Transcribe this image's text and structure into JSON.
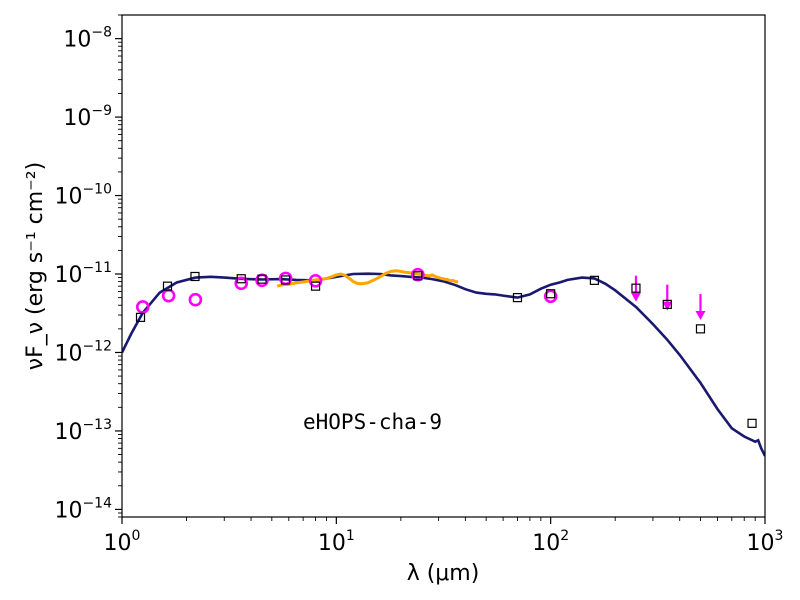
{
  "chart_data": {
    "type": "scatter",
    "title": "",
    "xlabel": "λ (μm)",
    "ylabel": "νF_ν (erg s⁻¹ cm⁻²)",
    "xscale": "log",
    "yscale": "log",
    "xlim": [
      1,
      1000
    ],
    "ylim": [
      8e-15,
      2e-08
    ],
    "grid": false,
    "x_ticks": [
      {
        "value": 1,
        "base": "10",
        "exp": "0"
      },
      {
        "value": 10,
        "base": "10",
        "exp": "1"
      },
      {
        "value": 100,
        "base": "10",
        "exp": "2"
      },
      {
        "value": 1000,
        "base": "10",
        "exp": "3"
      }
    ],
    "y_ticks": [
      {
        "value": 1e-14,
        "base": "10",
        "exp": "−14"
      },
      {
        "value": 1e-13,
        "base": "10",
        "exp": "−13"
      },
      {
        "value": 1e-12,
        "base": "10",
        "exp": "−12"
      },
      {
        "value": 1e-11,
        "base": "10",
        "exp": "−11"
      },
      {
        "value": 1e-10,
        "base": "10",
        "exp": "−10"
      },
      {
        "value": 1e-09,
        "base": "10",
        "exp": "−9"
      },
      {
        "value": 1e-08,
        "base": "10",
        "exp": "−8"
      }
    ],
    "annotation": "eHOPS-cha-9",
    "colors": {
      "model": "#191970",
      "spectrum": "#ffa500",
      "photometry": "#ff00ff",
      "squares": "#000000"
    },
    "model_curve": {
      "x": [
        1.0,
        1.1,
        1.25,
        1.5,
        1.8,
        2.2,
        2.6,
        3.0,
        3.6,
        4.5,
        5.5,
        6.5,
        8,
        10,
        12,
        14,
        16,
        18,
        20,
        22,
        25,
        28,
        32,
        36,
        40,
        45,
        50,
        55,
        60,
        70,
        80,
        90,
        100,
        110,
        120,
        140,
        160,
        180,
        200,
        250,
        300,
        350,
        400,
        500,
        600,
        700,
        800,
        900,
        930,
        960,
        1000
      ],
      "y": [
        1e-12,
        1.7e-12,
        3.2e-12,
        5.8e-12,
        7.8e-12,
        9e-12,
        9.2e-12,
        9e-12,
        8.7e-12,
        8.5e-12,
        8.6e-12,
        8.4e-12,
        8.3e-12,
        9.2e-12,
        1e-11,
        1.01e-11,
        1e-11,
        9.6e-12,
        9.4e-12,
        9.2e-12,
        9e-12,
        8.6e-12,
        8e-12,
        7.2e-12,
        6.4e-12,
        5.8e-12,
        5.6e-12,
        5.5e-12,
        5.3e-12,
        5e-12,
        5.5e-12,
        6.5e-12,
        7.3e-12,
        7.8e-12,
        8.4e-12,
        9e-12,
        8.8e-12,
        7.5e-12,
        6.2e-12,
        3.8e-12,
        2.3e-12,
        1.45e-12,
        9.3e-13,
        4.1e-13,
        1.9e-13,
        1.08e-13,
        8.5e-14,
        7.3e-14,
        7.6e-14,
        6e-14,
        4.8e-14
      ]
    },
    "spectrum": {
      "x": [
        5.3,
        5.6,
        6.0,
        6.5,
        7.0,
        7.5,
        8.0,
        8.5,
        9.0,
        9.5,
        10,
        10.5,
        11,
        11.5,
        12,
        12.5,
        13,
        13.5,
        14,
        15,
        16,
        17,
        18,
        19,
        20,
        21,
        22,
        23,
        24,
        25,
        26,
        27,
        28,
        29,
        30,
        31,
        32,
        33,
        34,
        35,
        36,
        37
      ],
      "y": [
        7e-12,
        7.3e-12,
        7.4e-12,
        7.7e-12,
        7.9e-12,
        8.2e-12,
        8.4e-12,
        8.5e-12,
        8.8e-12,
        9.2e-12,
        9.7e-12,
        1e-11,
        9.6e-12,
        8.8e-12,
        8e-12,
        7.6e-12,
        7.5e-12,
        7.6e-12,
        7.7e-12,
        8.4e-12,
        9.2e-12,
        1.02e-11,
        1.08e-11,
        1.1e-11,
        1.08e-11,
        1.05e-11,
        1.04e-11,
        1.03e-11,
        1e-11,
        9.8e-12,
        9.6e-12,
        9.5e-12,
        9.7e-12,
        9.3e-12,
        9e-12,
        8.8e-12,
        8.6e-12,
        8.5e-12,
        8.2e-12,
        8.3e-12,
        8e-12,
        7.9e-12
      ]
    },
    "photometry_circles": {
      "x": [
        1.25,
        1.65,
        2.2,
        3.6,
        4.5,
        5.8,
        8.0,
        24,
        100
      ],
      "y": [
        3.8e-12,
        5.3e-12,
        4.7e-12,
        7.6e-12,
        8.3e-12,
        8.8e-12,
        8.2e-12,
        9.8e-12,
        5.2e-12
      ]
    },
    "upper_limits": {
      "x": [
        250,
        350,
        500
      ],
      "y": [
        6.5e-12,
        5e-12,
        3.8e-12
      ]
    },
    "squares": {
      "x": [
        1.22,
        1.63,
        2.19,
        3.6,
        4.5,
        5.8,
        8.0,
        24,
        70,
        100,
        160,
        250,
        350,
        500,
        870
      ],
      "y": [
        2.8e-12,
        7e-12,
        9.3e-12,
        8.7e-12,
        8.6e-12,
        8.4e-12,
        7e-12,
        9.5e-12,
        5e-12,
        5.6e-12,
        8.3e-12,
        6.6e-12,
        4.1e-12,
        2e-12,
        1.25e-13
      ]
    }
  }
}
